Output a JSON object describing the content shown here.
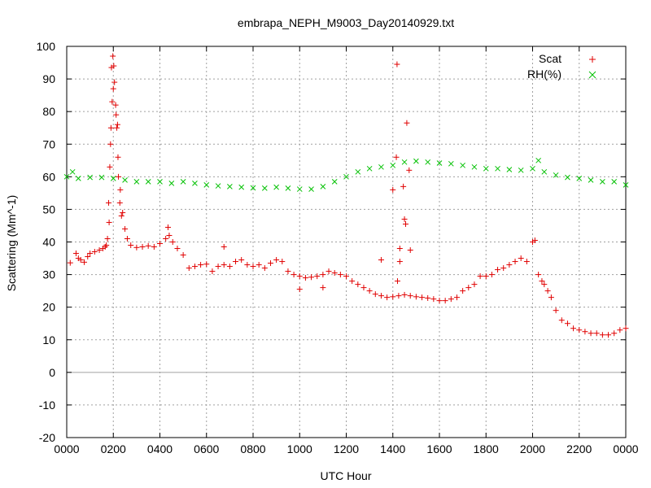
{
  "chart_data": {
    "type": "scatter",
    "title": "embrapa_NEPH_M9003_Day20140929.txt",
    "xlabel": "UTC Hour",
    "ylabel": "Scattering (Mm^-1)",
    "x_tick_labels": [
      "0000",
      "0200",
      "0400",
      "0600",
      "0800",
      "1000",
      "1200",
      "1400",
      "1600",
      "1800",
      "2000",
      "2200",
      "0000"
    ],
    "x_tick_values": [
      0,
      2,
      4,
      6,
      8,
      10,
      12,
      14,
      16,
      18,
      20,
      22,
      24
    ],
    "y_tick_labels": [
      "-20",
      "-10",
      "0",
      "10",
      "20",
      "30",
      "40",
      "50",
      "60",
      "70",
      "80",
      "90",
      "100"
    ],
    "y_tick_values": [
      -20,
      -10,
      0,
      10,
      20,
      30,
      40,
      50,
      60,
      70,
      80,
      90,
      100
    ],
    "xlim": [
      0,
      24
    ],
    "ylim": [
      -20,
      100
    ],
    "x_unit": "hours (UTC)",
    "grid": true,
    "grid_style": "dotted",
    "zero_line": true,
    "legend_position": "top-right",
    "series": [
      {
        "name": "Scat",
        "marker": "plus",
        "color": "#e00000",
        "points": [
          [
            0.15,
            33.6
          ],
          [
            0.4,
            36.5
          ],
          [
            0.5,
            35
          ],
          [
            0.6,
            34.5
          ],
          [
            0.75,
            33.8
          ],
          [
            0.9,
            35.5
          ],
          [
            1.0,
            36.5
          ],
          [
            1.2,
            37
          ],
          [
            1.4,
            37.5
          ],
          [
            1.55,
            38
          ],
          [
            1.65,
            38.5
          ],
          [
            1.7,
            39
          ],
          [
            1.75,
            41
          ],
          [
            1.8,
            52
          ],
          [
            1.85,
            63
          ],
          [
            1.9,
            75
          ],
          [
            1.95,
            83
          ],
          [
            2.0,
            87
          ],
          [
            2.05,
            89
          ],
          [
            2.1,
            82
          ],
          [
            2.15,
            75
          ],
          [
            2.2,
            66
          ],
          [
            2.3,
            56
          ],
          [
            2.4,
            49
          ],
          [
            2.5,
            44
          ],
          [
            2.6,
            41
          ],
          [
            2.75,
            39
          ],
          [
            3.0,
            38.3
          ],
          [
            3.25,
            38.5
          ],
          [
            3.5,
            38.8
          ],
          [
            3.75,
            38.5
          ],
          [
            4.0,
            39.5
          ],
          [
            4.25,
            41
          ],
          [
            4.4,
            42
          ],
          [
            4.55,
            40
          ],
          [
            4.75,
            38
          ],
          [
            5.0,
            36
          ],
          [
            5.25,
            32
          ],
          [
            5.5,
            32.5
          ],
          [
            5.75,
            33
          ],
          [
            6.0,
            33.2
          ],
          [
            6.25,
            31
          ],
          [
            6.5,
            32.5
          ],
          [
            6.75,
            33
          ],
          [
            7.0,
            32.5
          ],
          [
            7.25,
            34
          ],
          [
            7.5,
            34.5
          ],
          [
            7.75,
            33
          ],
          [
            8.0,
            32.5
          ],
          [
            8.25,
            33
          ],
          [
            8.5,
            32
          ],
          [
            8.75,
            33.5
          ],
          [
            9.0,
            34.5
          ],
          [
            9.25,
            34
          ],
          [
            9.5,
            31
          ],
          [
            9.75,
            30
          ],
          [
            10.0,
            29.5
          ],
          [
            10.25,
            29
          ],
          [
            10.5,
            29.2
          ],
          [
            10.75,
            29.5
          ],
          [
            11.0,
            30
          ],
          [
            11.25,
            31
          ],
          [
            11.5,
            30.5
          ],
          [
            11.75,
            30
          ],
          [
            12.0,
            29.5
          ],
          [
            12.25,
            28
          ],
          [
            12.5,
            27
          ],
          [
            12.75,
            26
          ],
          [
            13.0,
            25
          ],
          [
            13.25,
            24
          ],
          [
            13.5,
            23.5
          ],
          [
            13.75,
            23
          ],
          [
            14.0,
            23.2
          ],
          [
            14.25,
            23.5
          ],
          [
            14.5,
            23.8
          ],
          [
            14.75,
            23.5
          ],
          [
            15.0,
            23.2
          ],
          [
            15.25,
            23
          ],
          [
            15.5,
            22.8
          ],
          [
            15.75,
            22.5
          ],
          [
            16.0,
            22
          ],
          [
            16.25,
            22
          ],
          [
            16.5,
            22.5
          ],
          [
            16.75,
            23
          ],
          [
            17.0,
            25
          ],
          [
            17.25,
            26
          ],
          [
            17.5,
            27
          ],
          [
            17.75,
            29.5
          ],
          [
            18.0,
            29.5
          ],
          [
            18.25,
            30
          ],
          [
            18.5,
            31.5
          ],
          [
            18.75,
            32
          ],
          [
            19.0,
            33
          ],
          [
            19.25,
            34
          ],
          [
            19.5,
            35
          ],
          [
            19.75,
            34
          ],
          [
            20.0,
            40
          ],
          [
            20.1,
            40.5
          ],
          [
            20.25,
            30
          ],
          [
            20.4,
            28
          ],
          [
            20.5,
            27
          ],
          [
            20.65,
            25
          ],
          [
            20.8,
            23
          ],
          [
            21.0,
            19
          ],
          [
            21.25,
            16
          ],
          [
            21.5,
            15
          ],
          [
            21.75,
            13.5
          ],
          [
            22.0,
            13
          ],
          [
            22.25,
            12.5
          ],
          [
            22.5,
            12
          ],
          [
            22.75,
            12
          ],
          [
            23.0,
            11.5
          ],
          [
            23.25,
            11.5
          ],
          [
            23.5,
            12
          ],
          [
            23.75,
            13
          ],
          [
            24.0,
            13.5
          ],
          [
            1.82,
            46
          ],
          [
            1.88,
            70
          ],
          [
            1.92,
            93.5
          ],
          [
            1.98,
            97
          ],
          [
            2.02,
            94
          ],
          [
            2.12,
            79
          ],
          [
            2.18,
            76
          ],
          [
            2.22,
            60
          ],
          [
            2.28,
            52
          ],
          [
            2.35,
            48
          ],
          [
            4.35,
            44.5
          ],
          [
            6.75,
            38.5
          ],
          [
            10.0,
            25.5
          ],
          [
            11.0,
            26
          ],
          [
            13.5,
            34.5
          ],
          [
            14.0,
            56
          ],
          [
            14.15,
            66
          ],
          [
            14.18,
            94.5
          ],
          [
            14.3,
            38
          ],
          [
            14.45,
            57
          ],
          [
            14.5,
            47
          ],
          [
            14.55,
            45.5
          ],
          [
            14.6,
            76.5
          ],
          [
            14.7,
            62
          ],
          [
            14.75,
            37.5
          ],
          [
            14.3,
            34
          ],
          [
            14.2,
            28
          ]
        ]
      },
      {
        "name": "RH(%)",
        "marker": "cross",
        "color": "#00c000",
        "points": [
          [
            0.0,
            60
          ],
          [
            0.25,
            61.5
          ],
          [
            0.5,
            59.5
          ],
          [
            1.0,
            59.8
          ],
          [
            1.5,
            59.8
          ],
          [
            2.0,
            59.5
          ],
          [
            2.5,
            59
          ],
          [
            3.0,
            58.5
          ],
          [
            3.5,
            58.5
          ],
          [
            4.0,
            58.5
          ],
          [
            4.5,
            58
          ],
          [
            5.0,
            58.5
          ],
          [
            5.5,
            58
          ],
          [
            6.0,
            57.5
          ],
          [
            6.5,
            57.2
          ],
          [
            7.0,
            57
          ],
          [
            7.5,
            56.8
          ],
          [
            8.0,
            56.6
          ],
          [
            8.5,
            56.5
          ],
          [
            9.0,
            56.8
          ],
          [
            9.5,
            56.5
          ],
          [
            10.0,
            56.2
          ],
          [
            10.5,
            56.2
          ],
          [
            11.0,
            57
          ],
          [
            11.5,
            58.5
          ],
          [
            12.0,
            60
          ],
          [
            12.5,
            61.5
          ],
          [
            13.0,
            62.5
          ],
          [
            13.5,
            63
          ],
          [
            14.0,
            63.5
          ],
          [
            14.5,
            64.5
          ],
          [
            15.0,
            64.8
          ],
          [
            15.5,
            64.5
          ],
          [
            16.0,
            64.2
          ],
          [
            16.5,
            64
          ],
          [
            17.0,
            63.5
          ],
          [
            17.5,
            63
          ],
          [
            18.0,
            62.5
          ],
          [
            18.5,
            62.5
          ],
          [
            19.0,
            62.2
          ],
          [
            19.5,
            62
          ],
          [
            20.0,
            62.5
          ],
          [
            20.25,
            65
          ],
          [
            20.5,
            61.5
          ],
          [
            21.0,
            60.5
          ],
          [
            21.5,
            59.8
          ],
          [
            22.0,
            59.5
          ],
          [
            22.5,
            59
          ],
          [
            23.0,
            58.5
          ],
          [
            23.5,
            58.5
          ],
          [
            24.0,
            57.5
          ]
        ]
      }
    ]
  }
}
